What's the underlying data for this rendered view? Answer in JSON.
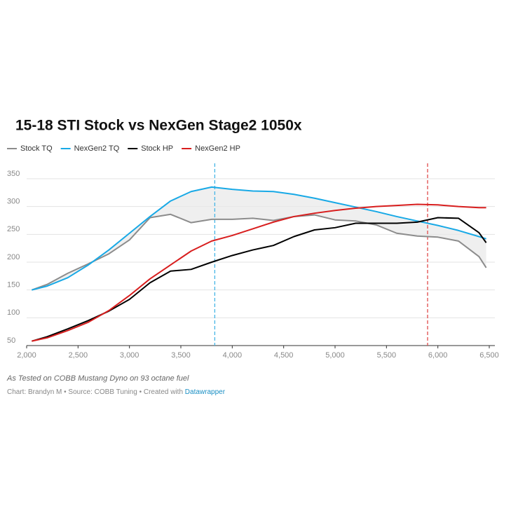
{
  "chart_data": {
    "type": "line",
    "title": "15-18 STI Stock vs NexGen Stage2 1050x",
    "note": "As Tested on COBB Mustang Dyno on 93 octane fuel",
    "credit": "Chart: Brandyn M • Source: COBB Tuning • Created with",
    "credit_link": "Datawrapper",
    "x": [
      2050,
      2200,
      2400,
      2600,
      2800,
      3000,
      3200,
      3400,
      3600,
      3800,
      4000,
      4200,
      4400,
      4600,
      4800,
      5000,
      5200,
      5400,
      5600,
      5800,
      6000,
      6200,
      6400,
      6470
    ],
    "series": [
      {
        "name": "Stock TQ",
        "color": "#8c8c8c",
        "values": [
          150,
          160,
          180,
          197,
          215,
          240,
          280,
          286,
          271,
          277,
          277,
          279,
          275,
          282,
          285,
          276,
          274,
          267,
          252,
          247,
          245,
          238,
          210,
          190
        ]
      },
      {
        "name": "NexGen2 TQ",
        "color": "#18a9e6",
        "values": [
          150,
          157,
          172,
          195,
          222,
          252,
          282,
          310,
          327,
          335,
          331,
          328,
          327,
          322,
          315,
          307,
          299,
          291,
          282,
          274,
          266,
          257,
          246,
          242
        ]
      },
      {
        "name": "Stock HP",
        "color": "#000000",
        "values": [
          58,
          66,
          80,
          95,
          112,
          133,
          163,
          184,
          187,
          200,
          212,
          222,
          230,
          246,
          258,
          262,
          270,
          270,
          270,
          272,
          280,
          279,
          253,
          235
        ]
      },
      {
        "name": "NexGen2 HP",
        "color": "#d81e1e",
        "values": [
          58,
          64,
          77,
          92,
          113,
          140,
          170,
          195,
          220,
          238,
          248,
          260,
          272,
          282,
          288,
          293,
          297,
          300,
          302,
          304,
          303,
          300,
          298,
          298
        ]
      }
    ],
    "reference_lines": [
      {
        "x": 3830,
        "color": "#45b5e6"
      },
      {
        "x": 5900,
        "color": "#e04a4a"
      }
    ],
    "xlim": [
      2000,
      6500
    ],
    "xticks": [
      {
        "value": 2000,
        "label": "2,000"
      },
      {
        "value": 2500,
        "label": "2,500"
      },
      {
        "value": 3000,
        "label": "3,000"
      },
      {
        "value": 3500,
        "label": "3,500"
      },
      {
        "value": 4000,
        "label": "4,000"
      },
      {
        "value": 4500,
        "label": "4,500"
      },
      {
        "value": 5000,
        "label": "5,000"
      },
      {
        "value": 5500,
        "label": "5,500"
      },
      {
        "value": 6000,
        "label": "6,000"
      },
      {
        "value": 6500,
        "label": "6,500"
      }
    ],
    "ylim": [
      50,
      350
    ],
    "yticks": [
      50,
      100,
      150,
      200,
      250,
      300,
      350
    ],
    "grid": true
  }
}
